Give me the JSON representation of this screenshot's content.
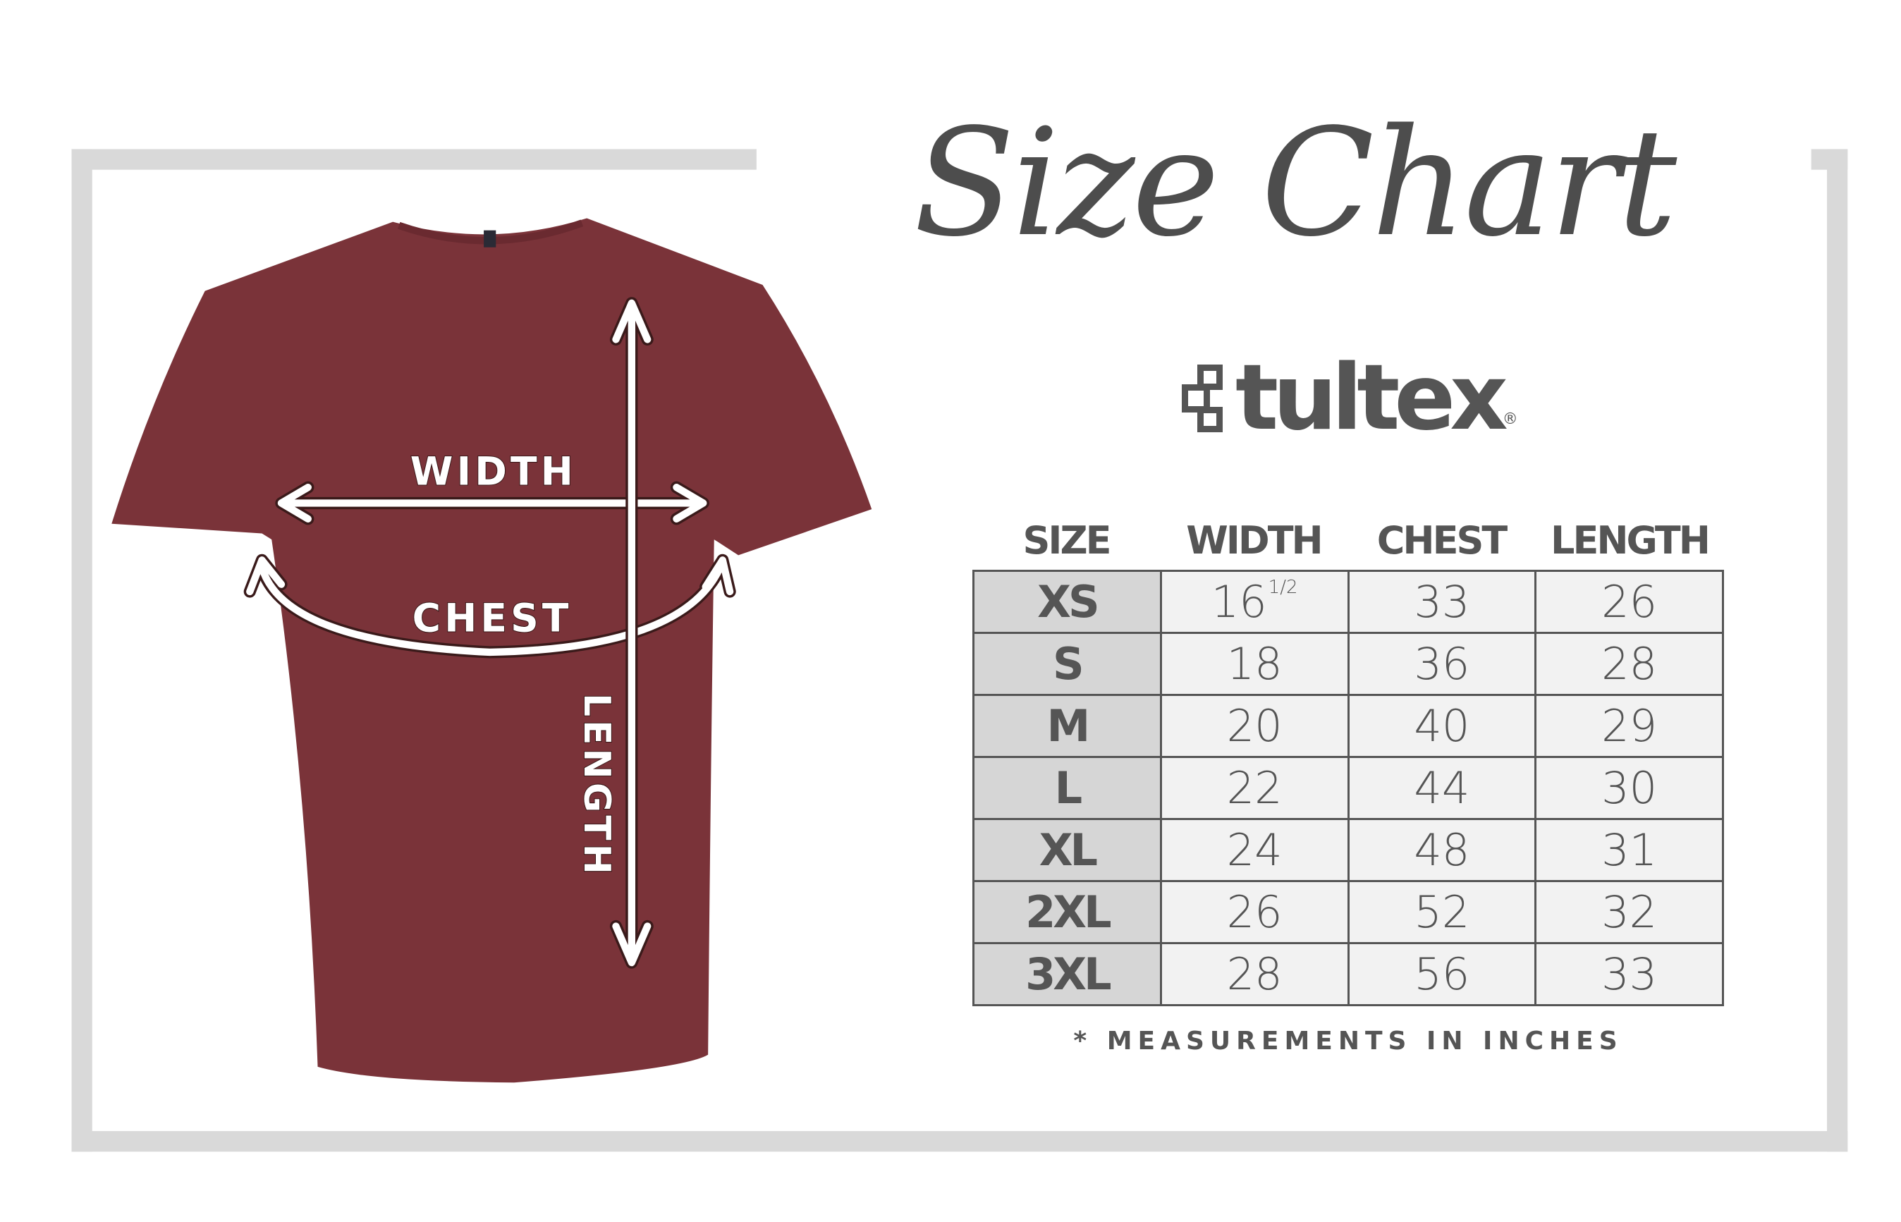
{
  "title": "Size Chart",
  "brand": {
    "name": "tultex",
    "registered": "®"
  },
  "colors": {
    "shirt": "#7a3339",
    "frame": "#d9d9d9",
    "text": "#555555",
    "size_cell": "#d6d6d6",
    "value_cell": "#f2f2f2"
  },
  "shirt_labels": {
    "width": "WIDTH",
    "chest": "CHEST",
    "length": "LENGTH"
  },
  "table": {
    "headers": [
      "SIZE",
      "WIDTH",
      "CHEST",
      "LENGTH"
    ],
    "rows": [
      {
        "size": "XS",
        "width": "16",
        "width_fraction": "1/2",
        "chest": "33",
        "length": "26"
      },
      {
        "size": "S",
        "width": "18",
        "chest": "36",
        "length": "28"
      },
      {
        "size": "M",
        "width": "20",
        "chest": "40",
        "length": "29"
      },
      {
        "size": "L",
        "width": "22",
        "chest": "44",
        "length": "30"
      },
      {
        "size": "XL",
        "width": "24",
        "chest": "48",
        "length": "31"
      },
      {
        "size": "2XL",
        "width": "26",
        "chest": "52",
        "length": "32"
      },
      {
        "size": "3XL",
        "width": "28",
        "chest": "56",
        "length": "33"
      }
    ]
  },
  "footnote": "* MEASUREMENTS IN INCHES"
}
